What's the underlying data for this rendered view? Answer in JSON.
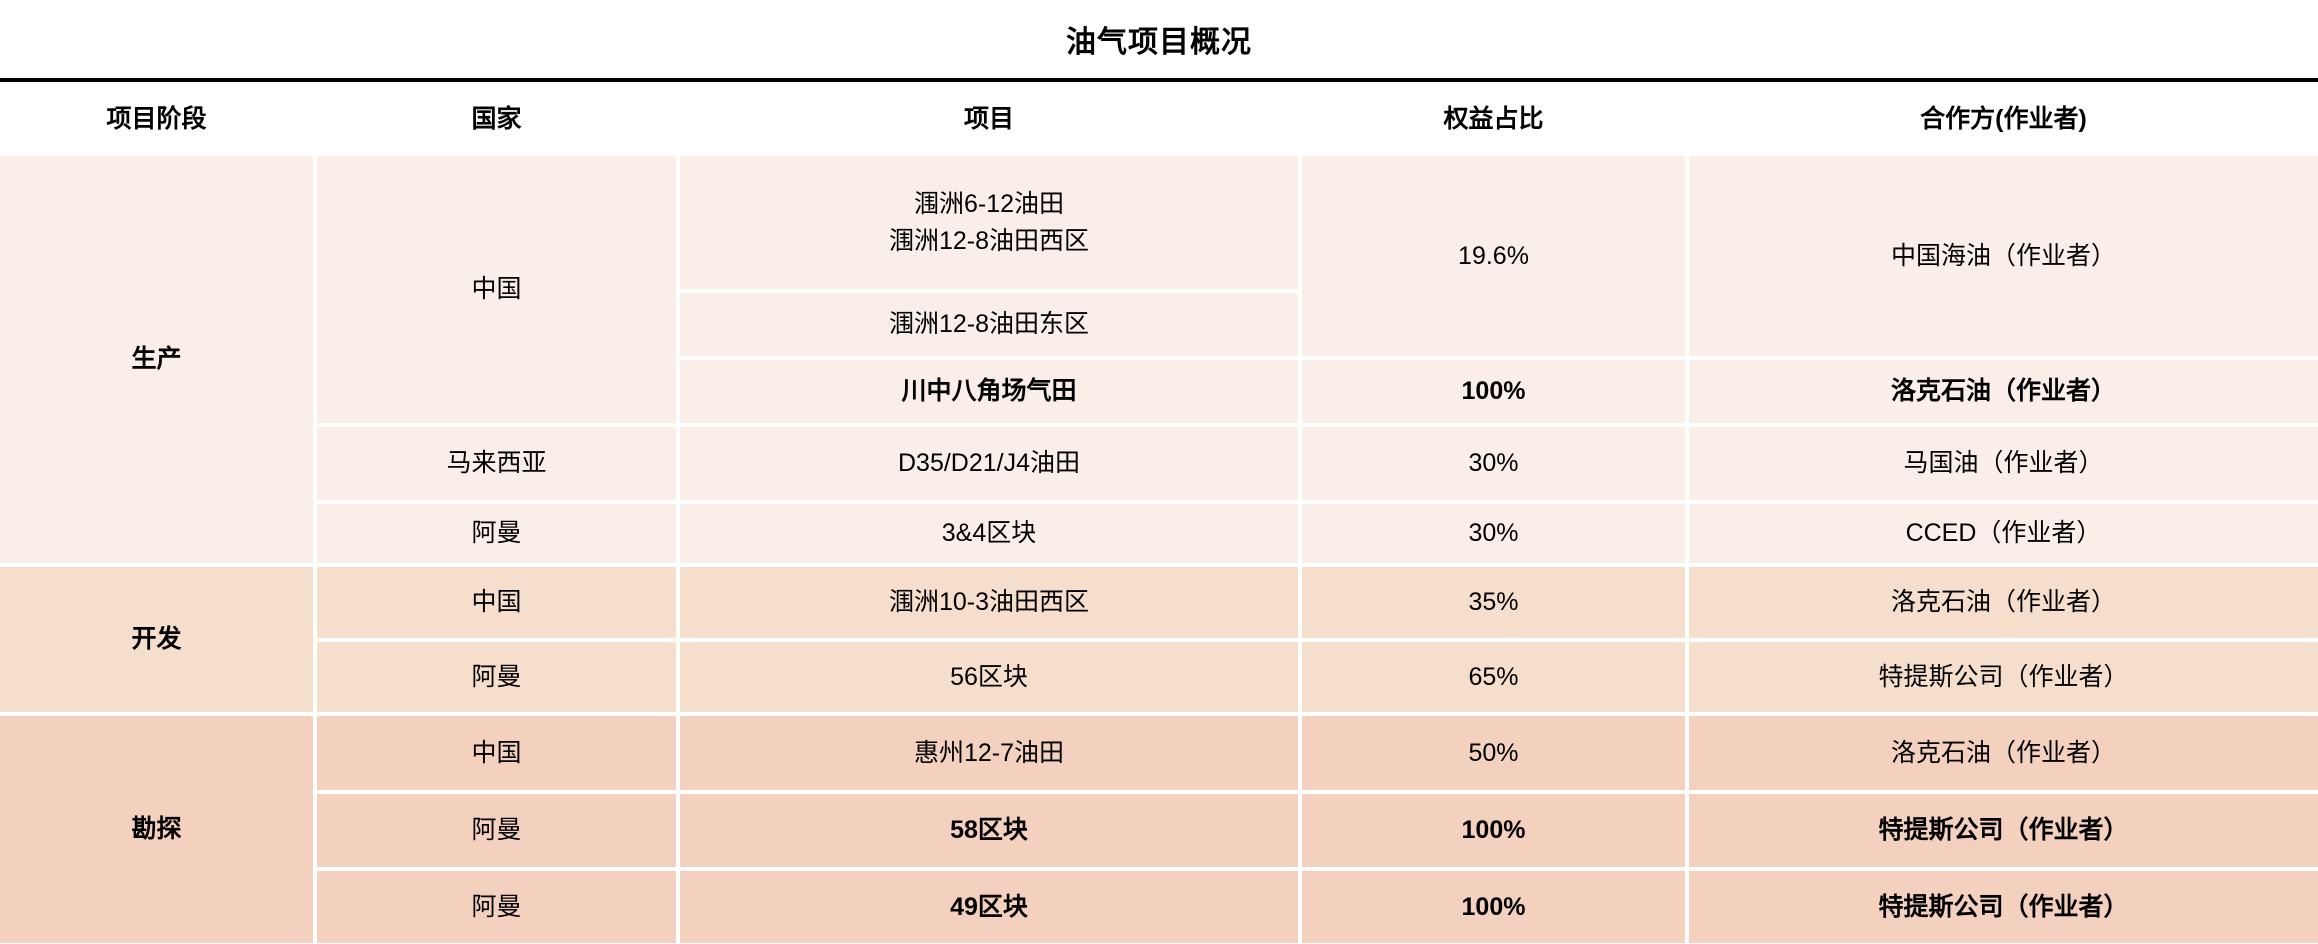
{
  "title": "油气项目概况",
  "colors": {
    "rule": "#000000",
    "header_bg": "#ffffff",
    "production_bg": "#faefe8",
    "development_bg": "#f6decd",
    "exploration_bg": "#f3d1be",
    "text": "#000000"
  },
  "chart_data": {
    "type": "table",
    "title": "油气项目概况",
    "columns": [
      "项目阶段",
      "国家",
      "项目",
      "权益占比",
      "合作方(作业者)"
    ],
    "rows": [
      [
        "生产",
        "中国",
        "涠洲6-12油田\n涠洲12-8油田西区",
        "19.6%",
        "中国海油（作业者）"
      ],
      [
        "生产",
        "中国",
        "涠洲12-8油田东区",
        "19.6%",
        "中国海油（作业者）"
      ],
      [
        "生产",
        "中国",
        "川中八角场气田",
        "100%",
        "洛克石油（作业者）"
      ],
      [
        "生产",
        "马来西亚",
        "D35/D21/J4油田",
        "30%",
        "马国油（作业者）"
      ],
      [
        "生产",
        "阿曼",
        "3&4区块",
        "30%",
        "CCED（作业者）"
      ],
      [
        "开发",
        "中国",
        "涠洲10-3油田西区",
        "35%",
        "洛克石油（作业者）"
      ],
      [
        "开发",
        "阿曼",
        "56区块",
        "65%",
        "特提斯公司（作业者）"
      ],
      [
        "勘探",
        "中国",
        "惠州12-7油田",
        "50%",
        "洛克石油（作业者）"
      ],
      [
        "勘探",
        "阿曼",
        "58区块",
        "100%",
        "特提斯公司（作业者）"
      ],
      [
        "勘探",
        "阿曼",
        "49区块",
        "100%",
        "特提斯公司（作业者）"
      ]
    ],
    "merges": [
      {
        "cell": "stage 生产",
        "spans_rows": "1-5"
      },
      {
        "cell": "country 中国 (生产)",
        "spans_rows": "1-3"
      },
      {
        "cell": "equity 19.6%",
        "spans_rows": "1-2"
      },
      {
        "cell": "partner 中国海油（作业者）",
        "spans_rows": "1-2"
      },
      {
        "cell": "stage 开发",
        "spans_rows": "6-7"
      },
      {
        "cell": "stage 勘探",
        "spans_rows": "8-10"
      }
    ],
    "bold_rows": [
      3,
      9,
      10
    ],
    "legend_position": "none",
    "grid": "white gaps between cells; section shading darkens from 生产 to 勘探"
  }
}
